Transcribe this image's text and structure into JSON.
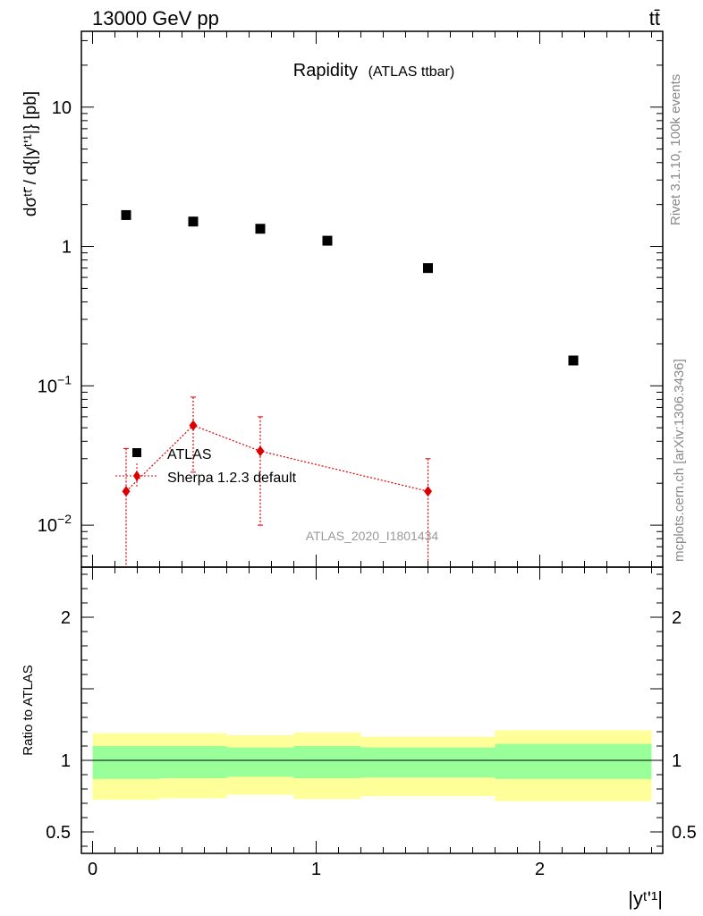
{
  "header": {
    "left": "13000 GeV pp",
    "right": "tt̄"
  },
  "side_text": {
    "top": "Rivet 3.1.10,  100k events",
    "bottom": "mcplots.cern.ch [arXiv:1306.3436]"
  },
  "chart_data": {
    "type": "scatter",
    "title": "Rapidity",
    "subtitle": "(ATLAS ttbar)",
    "analysis_label": "ATLAS_2020_I1801434",
    "ylabel_main": "dσᵗᵗ̄ / d{|yᵗʹ¹|} [pb]",
    "ylabel_ratio": "Ratio to ATLAS",
    "xlabel": "|yᵗʹ¹|",
    "xlim": [
      -0.05,
      2.55
    ],
    "ylim_main": [
      0.005,
      35
    ],
    "yscale_main": "log",
    "ylim_ratio": [
      0.35,
      2.35
    ],
    "x_ticks": [
      0,
      1,
      2
    ],
    "x_tick_labels": [
      "0",
      "1",
      "2"
    ],
    "y_ticks_main": [
      0.01,
      0.1,
      1,
      10
    ],
    "y_ticks_ratio": [
      0.5,
      1,
      2
    ],
    "y_tick_labels_ratio": [
      "0.5",
      "1",
      "2"
    ],
    "legend_placement": "bottom-left",
    "series": [
      {
        "name": "ATLAS",
        "color": "#000000",
        "marker": "square",
        "x": [
          0.15,
          0.45,
          0.75,
          1.05,
          1.5,
          2.15
        ],
        "y": [
          1.68,
          1.51,
          1.34,
          1.1,
          0.7,
          0.152
        ]
      },
      {
        "name": "Sherpa 1.2.3 default",
        "color": "#dd0000",
        "marker": "diamond",
        "x": [
          0.15,
          0.45,
          0.75,
          1.5
        ],
        "y": [
          0.0175,
          0.052,
          0.034,
          0.0175
        ],
        "yerr_low": [
          0.0175,
          0.028,
          0.024,
          0.0175
        ],
        "yerr_high": [
          0.018,
          0.031,
          0.026,
          0.0125
        ]
      }
    ],
    "ratio_bands": {
      "edges": [
        0,
        0.3,
        0.6,
        0.9,
        1.2,
        1.8,
        2.5
      ],
      "inner_low": [
        0.87,
        0.875,
        0.885,
        0.875,
        0.88,
        0.87
      ],
      "inner_high": [
        1.1,
        1.1,
        1.09,
        1.1,
        1.09,
        1.115
      ],
      "outer_low": [
        0.725,
        0.735,
        0.76,
        0.73,
        0.75,
        0.715
      ],
      "outer_high": [
        1.19,
        1.19,
        1.175,
        1.195,
        1.165,
        1.21
      ],
      "inner_color": "#99ff99",
      "outer_color": "#ffff99"
    }
  }
}
